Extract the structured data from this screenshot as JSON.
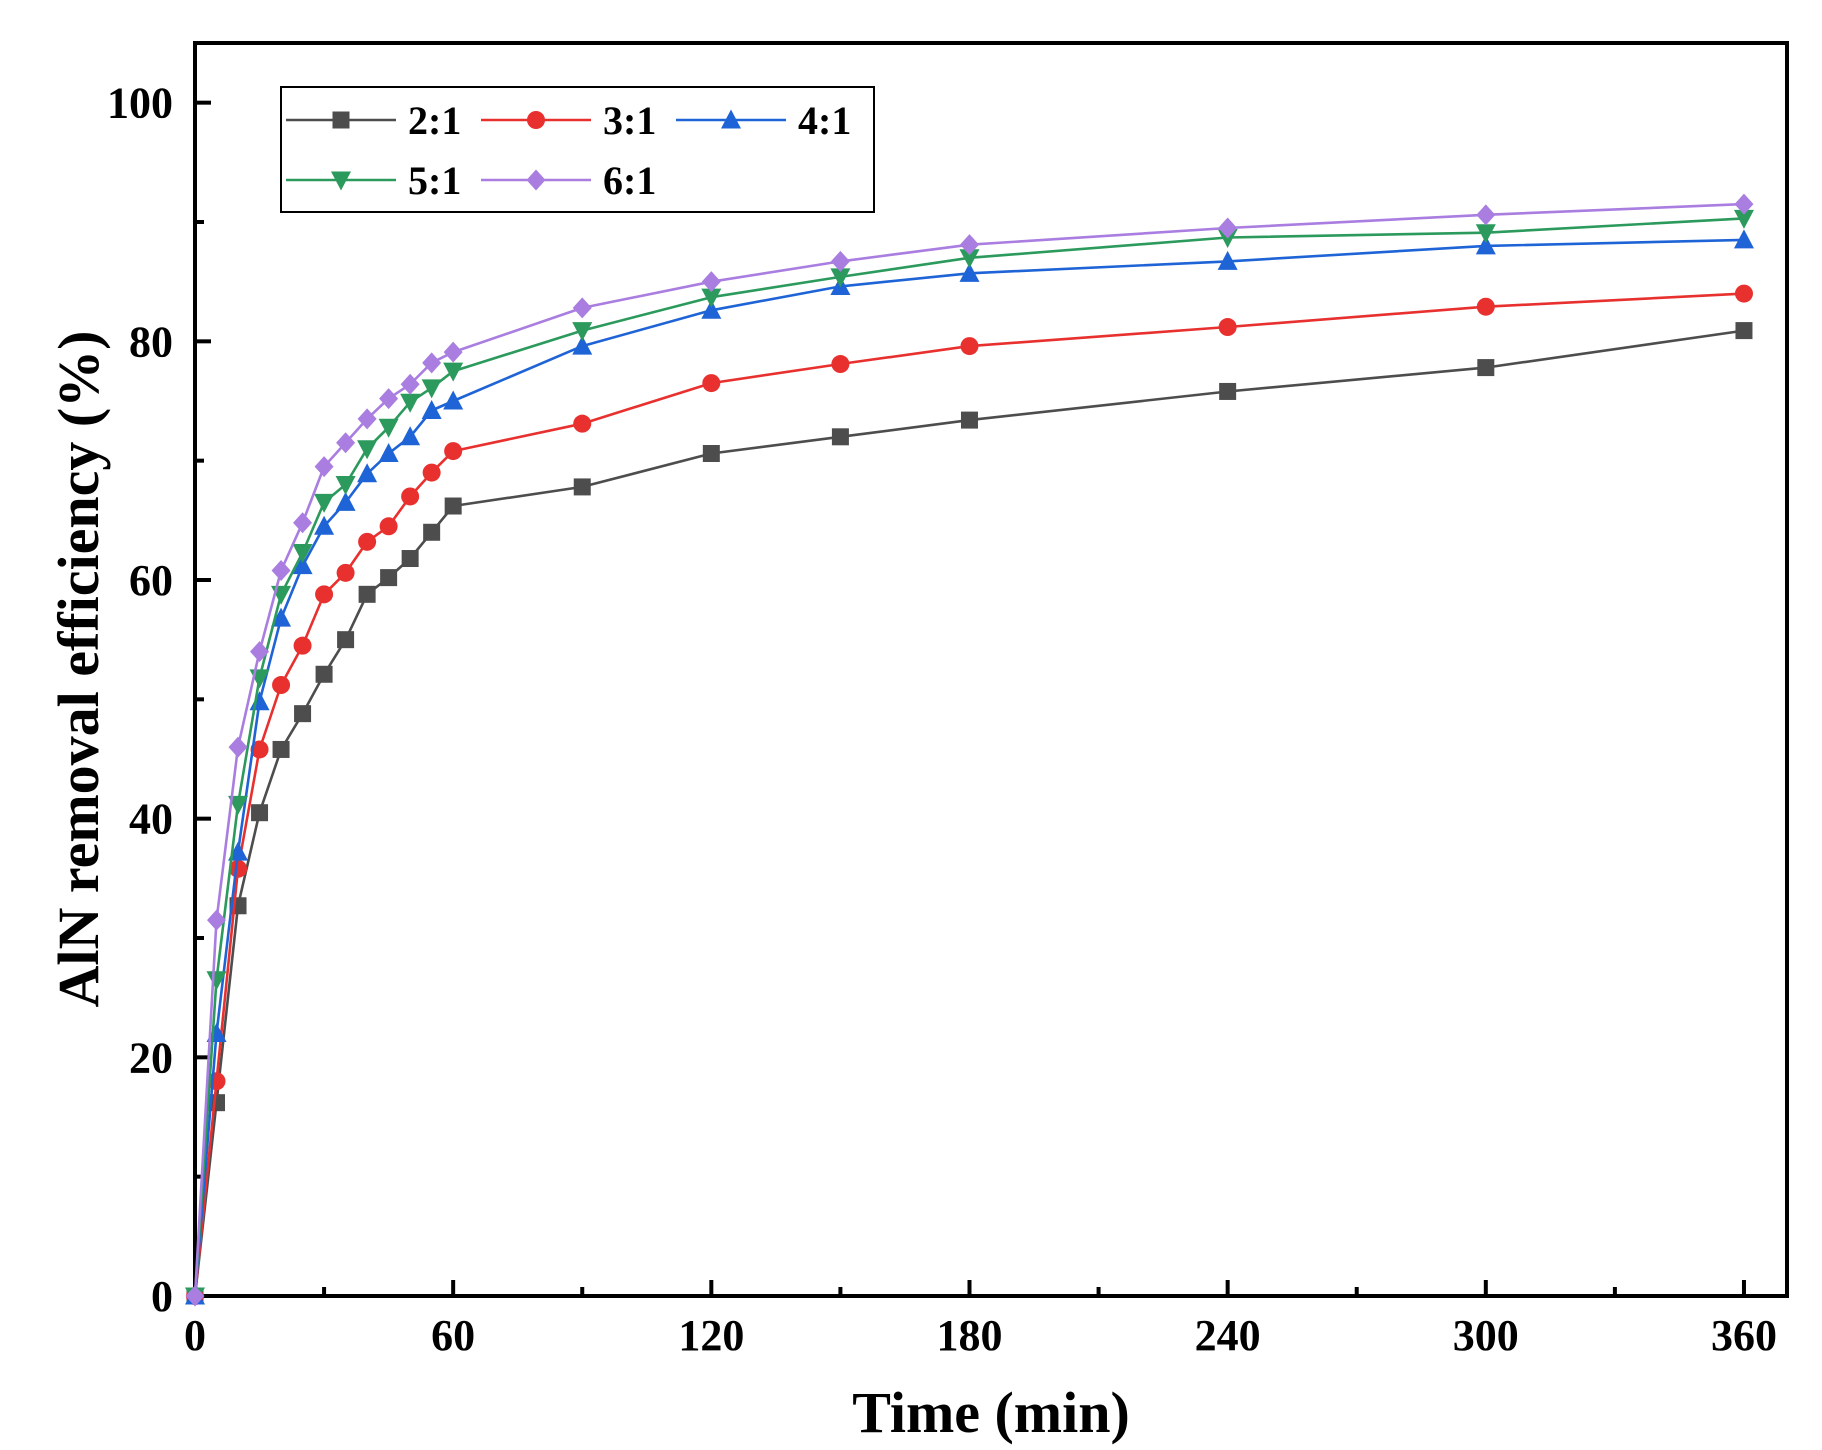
{
  "chart_data": {
    "type": "line",
    "title": "",
    "xlabel": "Time (min)",
    "ylabel": "AlN removal efficiency (%)",
    "xlim": [
      0,
      370
    ],
    "ylim": [
      0,
      105
    ],
    "xticks": [
      0,
      60,
      120,
      180,
      240,
      300,
      360
    ],
    "yticks": [
      0,
      20,
      40,
      60,
      80,
      100
    ],
    "x_minor_step": 30,
    "y_minor_step": 10,
    "legend_position": "top-left",
    "x": [
      0,
      5,
      10,
      15,
      20,
      25,
      30,
      35,
      40,
      45,
      50,
      55,
      60,
      90,
      120,
      150,
      180,
      240,
      300,
      360
    ],
    "series": [
      {
        "name": "2:1",
        "color": "#4d4d4d",
        "marker": "square",
        "values": [
          0,
          16.2,
          32.7,
          40.5,
          45.8,
          48.8,
          52.1,
          55.0,
          58.8,
          60.2,
          61.8,
          64.0,
          66.2,
          67.8,
          70.6,
          72.0,
          73.4,
          75.8,
          77.8,
          80.9
        ]
      },
      {
        "name": "3:1",
        "color": "#e8312f",
        "marker": "circle",
        "values": [
          0,
          18.0,
          35.8,
          45.8,
          51.2,
          54.5,
          58.8,
          60.6,
          63.2,
          64.5,
          67.0,
          69.0,
          70.8,
          73.1,
          76.5,
          78.1,
          79.6,
          81.2,
          82.9,
          84.0
        ]
      },
      {
        "name": "4:1",
        "color": "#1f64d6",
        "marker": "triangle-up",
        "values": [
          0,
          22.0,
          37.2,
          49.8,
          56.8,
          61.2,
          64.5,
          66.5,
          68.9,
          70.6,
          72.0,
          74.2,
          75.0,
          79.6,
          82.6,
          84.6,
          85.7,
          86.7,
          88.0,
          88.5
        ]
      },
      {
        "name": "5:1",
        "color": "#2b9a5c",
        "marker": "triangle-down",
        "values": [
          0,
          26.5,
          41.2,
          51.8,
          58.8,
          62.3,
          66.5,
          68.0,
          71.0,
          72.8,
          74.9,
          76.1,
          77.5,
          80.9,
          83.7,
          85.4,
          87.0,
          88.7,
          89.1,
          90.3
        ]
      },
      {
        "name": "6:1",
        "color": "#a97ee0",
        "marker": "diamond",
        "values": [
          0,
          31.5,
          46.0,
          54.0,
          60.8,
          64.8,
          69.5,
          71.5,
          73.5,
          75.2,
          76.4,
          78.2,
          79.1,
          82.8,
          85.0,
          86.7,
          88.1,
          89.5,
          90.6,
          91.5
        ]
      }
    ]
  }
}
